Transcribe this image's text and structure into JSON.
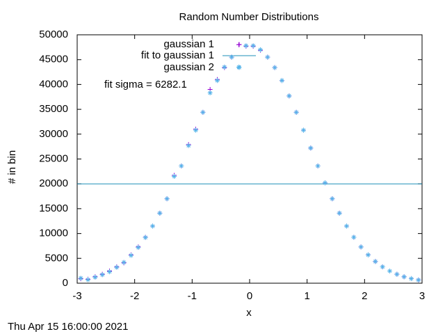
{
  "chart_data": {
    "type": "scatter",
    "title": "Random Number Distributions",
    "xlabel": "x",
    "ylabel": "# in bin",
    "x": [
      -2.9375,
      -2.8125,
      -2.6875,
      -2.5625,
      -2.4375,
      -2.3125,
      -2.1875,
      -2.0625,
      -1.9375,
      -1.8125,
      -1.6875,
      -1.5625,
      -1.4375,
      -1.3125,
      -1.1875,
      -1.0625,
      -0.9375,
      -0.8125,
      -0.6875,
      -0.5625,
      -0.4375,
      -0.3125,
      -0.1875,
      -0.0625,
      0.0625,
      0.1875,
      0.3125,
      0.4375,
      0.5625,
      0.6875,
      0.8125,
      0.9375,
      1.0625,
      1.1875,
      1.3125,
      1.4375,
      1.5625,
      1.6875,
      1.8125,
      1.9375,
      2.0625,
      2.1875,
      2.3125,
      2.4375,
      2.5625,
      2.6875,
      2.8125,
      2.9375
    ],
    "series": [
      {
        "name": "gaussian 1",
        "color": "#9400d3",
        "marker": "plus",
        "values": [
          900,
          800,
          1300,
          1800,
          2450,
          3300,
          4100,
          5700,
          7300,
          9250,
          11500,
          14100,
          17000,
          21700,
          23600,
          27900,
          31000,
          34400,
          39000,
          41000,
          43400,
          45500,
          48000,
          47700,
          47700,
          46900,
          45500,
          43400,
          40800,
          37700,
          34400,
          30800,
          27200,
          23600,
          20200,
          17000,
          14100,
          11500,
          9250,
          7300,
          5700,
          4370,
          3300,
          2450,
          1800,
          1290,
          920,
          640
        ]
      },
      {
        "name": "fit to gaussian 1",
        "color": "#1f8fb8",
        "marker": "line",
        "x": [
          -3,
          3
        ],
        "values": [
          20000,
          20000
        ]
      },
      {
        "name": "gaussian 2",
        "color": "#56b4e9",
        "marker": "star",
        "values": [
          1000,
          700,
          1200,
          1700,
          2300,
          3200,
          4200,
          5600,
          7200,
          9200,
          11500,
          14100,
          17000,
          21500,
          23600,
          27700,
          30800,
          34400,
          38300,
          40800,
          43500,
          45500,
          43500,
          47800,
          47800,
          47000,
          45500,
          43400,
          40800,
          37700,
          34400,
          30800,
          27200,
          23600,
          20200,
          17000,
          14100,
          11500,
          9250,
          7300,
          5700,
          4370,
          3300,
          2450,
          1800,
          1290,
          920,
          640
        ]
      }
    ],
    "annotation": "fit sigma = 6282.1",
    "timestamp": "Thu Apr 15 16:00:00 2021",
    "xlim": [
      -3,
      3
    ],
    "xticks": [
      -3,
      -2,
      -1,
      0,
      1,
      2,
      3
    ],
    "ylim": [
      0,
      50000
    ],
    "yticks": [
      0,
      5000,
      10000,
      15000,
      20000,
      25000,
      30000,
      35000,
      40000,
      45000,
      50000
    ]
  }
}
